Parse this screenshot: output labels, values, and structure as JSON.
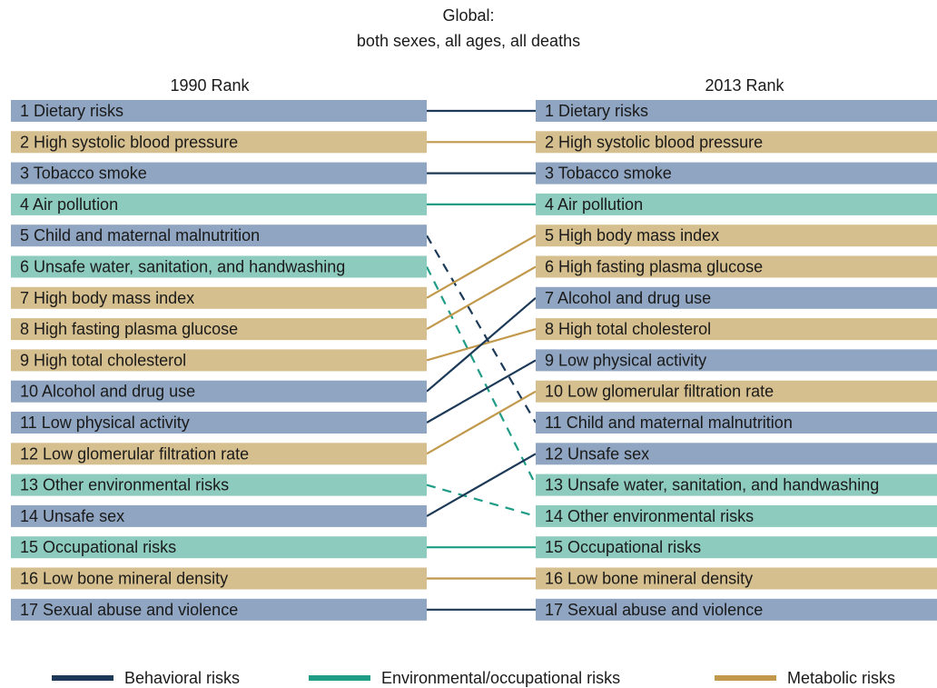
{
  "title": [
    "Global:",
    "both sexes, all ages, all deaths"
  ],
  "left_header": "1990 Rank",
  "right_header": "2013 Rank",
  "legend": [
    {
      "name": "Behavioral risks",
      "line_color": "#1c3a57",
      "box_color": "#8fa5c1"
    },
    {
      "name": "Environmental/occupational risks",
      "line_color": "#1f9c86",
      "box_color": "#8ecbbf"
    },
    {
      "name": "Metabolic risks",
      "line_color": "#c2994c",
      "box_color": "#d6bf8e"
    }
  ],
  "left": [
    {
      "rank": 1,
      "name": "Dietary risks",
      "group": 0
    },
    {
      "rank": 2,
      "name": "High systolic blood pressure",
      "group": 2
    },
    {
      "rank": 3,
      "name": "Tobacco smoke",
      "group": 0
    },
    {
      "rank": 4,
      "name": "Air pollution",
      "group": 1
    },
    {
      "rank": 5,
      "name": "Child and maternal malnutrition",
      "group": 0
    },
    {
      "rank": 6,
      "name": "Unsafe water, sanitation, and handwashing",
      "group": 1
    },
    {
      "rank": 7,
      "name": "High body mass index",
      "group": 2
    },
    {
      "rank": 8,
      "name": "High fasting plasma glucose",
      "group": 2
    },
    {
      "rank": 9,
      "name": "High total cholesterol",
      "group": 2
    },
    {
      "rank": 10,
      "name": "Alcohol and drug use",
      "group": 0
    },
    {
      "rank": 11,
      "name": "Low physical activity",
      "group": 0
    },
    {
      "rank": 12,
      "name": "Low glomerular filtration rate",
      "group": 2
    },
    {
      "rank": 13,
      "name": "Other environmental risks",
      "group": 1
    },
    {
      "rank": 14,
      "name": "Unsafe sex",
      "group": 0
    },
    {
      "rank": 15,
      "name": "Occupational risks",
      "group": 1
    },
    {
      "rank": 16,
      "name": "Low bone mineral density",
      "group": 2
    },
    {
      "rank": 17,
      "name": "Sexual abuse and violence",
      "group": 0
    }
  ],
  "right": [
    {
      "rank": 1,
      "name": "Dietary risks",
      "group": 0
    },
    {
      "rank": 2,
      "name": "High systolic blood pressure",
      "group": 2
    },
    {
      "rank": 3,
      "name": "Tobacco smoke",
      "group": 0
    },
    {
      "rank": 4,
      "name": "Air pollution",
      "group": 1
    },
    {
      "rank": 5,
      "name": "High body mass index",
      "group": 2
    },
    {
      "rank": 6,
      "name": "High fasting plasma glucose",
      "group": 2
    },
    {
      "rank": 7,
      "name": "Alcohol and drug use",
      "group": 0
    },
    {
      "rank": 8,
      "name": "High total cholesterol",
      "group": 2
    },
    {
      "rank": 9,
      "name": "Low physical activity",
      "group": 0
    },
    {
      "rank": 10,
      "name": "Low glomerular filtration rate",
      "group": 2
    },
    {
      "rank": 11,
      "name": "Child and maternal malnutrition",
      "group": 0
    },
    {
      "rank": 12,
      "name": "Unsafe sex",
      "group": 0
    },
    {
      "rank": 13,
      "name": "Unsafe water, sanitation, and handwashing",
      "group": 1
    },
    {
      "rank": 14,
      "name": "Other environmental risks",
      "group": 1
    },
    {
      "rank": 15,
      "name": "Occupational risks",
      "group": 1
    },
    {
      "rank": 16,
      "name": "Low bone mineral density",
      "group": 2
    },
    {
      "rank": 17,
      "name": "Sexual abuse and violence",
      "group": 0
    }
  ]
}
